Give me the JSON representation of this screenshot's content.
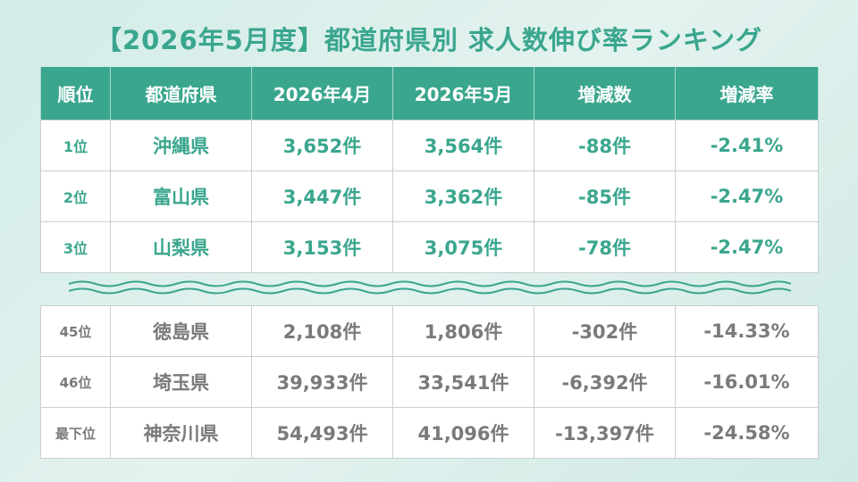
{
  "title": "【2026年5月度】都道府県別 求人数伸び率ランキング",
  "headers": [
    "順位",
    "都道府県",
    "2026年4月",
    "2026年5月",
    "増減数",
    "増減率"
  ],
  "top_rows": [
    {
      "rank": "1位",
      "pref": "沖縄県",
      "apr": "3,652件",
      "may": "3,564件",
      "diff": "-88件",
      "rate": "-2.41%"
    },
    {
      "rank": "2位",
      "pref": "富山県",
      "apr": "3,447件",
      "may": "3,362件",
      "diff": "-85件",
      "rate": "-2.47%"
    },
    {
      "rank": "3位",
      "pref": "山梨県",
      "apr": "3,153件",
      "may": "3,075件",
      "diff": "-78件",
      "rate": "-2.47%"
    }
  ],
  "bottom_rows": [
    {
      "rank": "45位",
      "pref": "徳島県",
      "apr": "2,108件",
      "may": "1,806件",
      "diff": "-302件",
      "rate": "-14.33%"
    },
    {
      "rank": "46位",
      "pref": "埼玉県",
      "apr": "39,933件",
      "may": "33,541件",
      "diff": "-6,392件",
      "rate": "-16.01%"
    },
    {
      "rank": "最下位",
      "pref": "神奈川県",
      "apr": "54,493件",
      "may": "41,096件",
      "diff": "-13,397件",
      "rate": "-24.58%"
    }
  ],
  "colors": {
    "accent": "#3aa68e",
    "muted_text": "#7a7a7a",
    "background": "#d9eeea"
  },
  "chart_data": {
    "type": "table",
    "title": "【2026年5月度】都道府県別 求人数伸び率ランキング",
    "columns": [
      "順位",
      "都道府県",
      "2026年4月",
      "2026年5月",
      "増減数",
      "増減率"
    ],
    "rows": [
      [
        "1位",
        "沖縄県",
        "3,652件",
        "3,564件",
        "-88件",
        "-2.41%"
      ],
      [
        "2位",
        "富山県",
        "3,447件",
        "3,362件",
        "-85件",
        "-2.47%"
      ],
      [
        "3位",
        "山梨県",
        "3,153件",
        "3,075件",
        "-78件",
        "-2.47%"
      ],
      [
        "45位",
        "徳島県",
        "2,108件",
        "1,806件",
        "-302件",
        "-14.33%"
      ],
      [
        "46位",
        "埼玉県",
        "39,933件",
        "33,541件",
        "-6,392件",
        "-16.01%"
      ],
      [
        "最下位",
        "神奈川県",
        "54,493件",
        "41,096件",
        "-13,397件",
        "-24.58%"
      ]
    ]
  }
}
